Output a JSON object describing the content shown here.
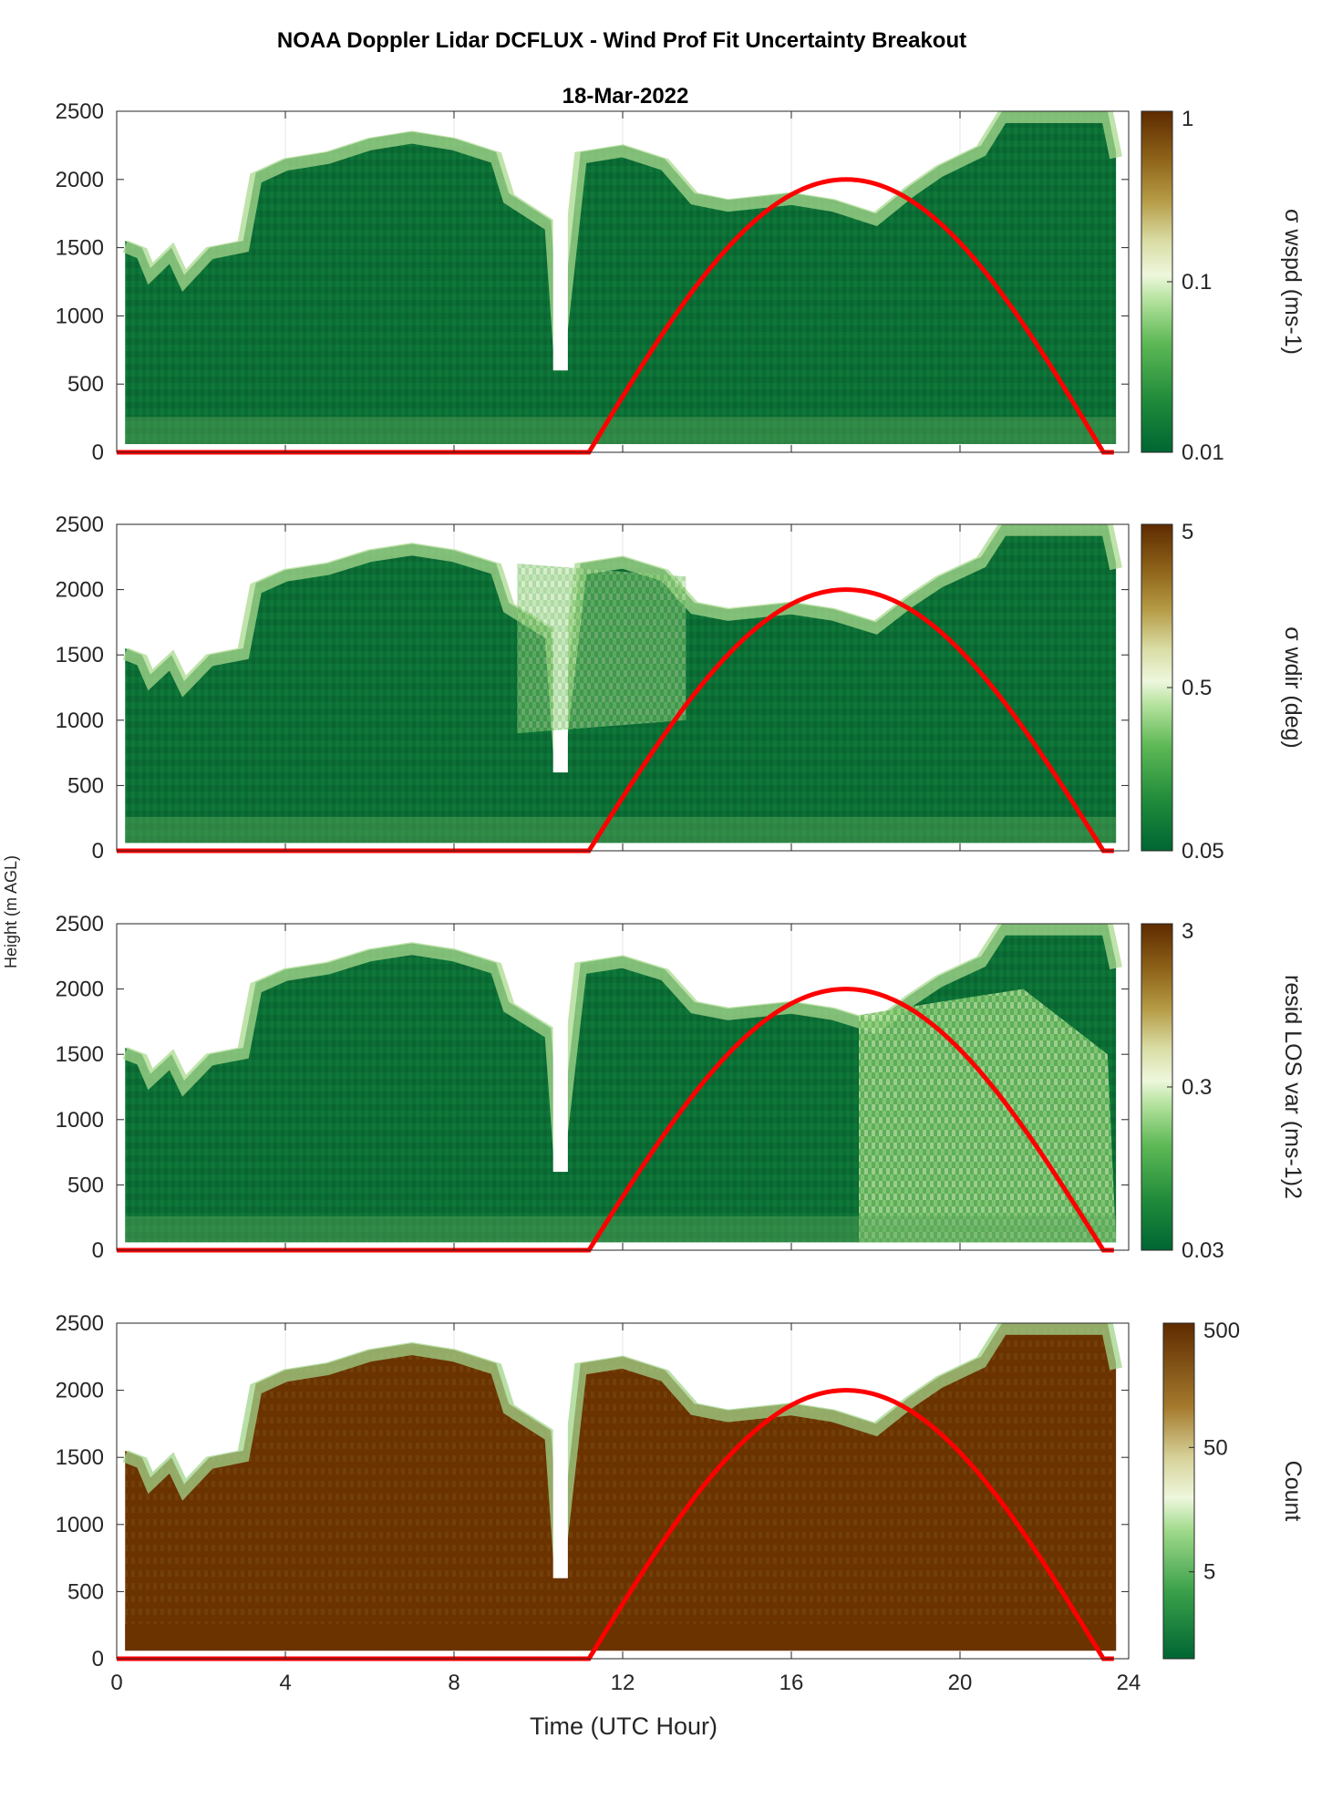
{
  "figure": {
    "title": "NOAA Doppler Lidar DCFLUX - Wind Prof Fit Uncertainty Breakout",
    "subtitle": "18-Mar-2022",
    "shared_ylabel": "Height (m AGL)",
    "shared_xlabel": "Time (UTC Hour)"
  },
  "colors": {
    "sun_curve": "#ff0000",
    "low": "#006633",
    "mid": "#eef7dd",
    "high": "#6b3300",
    "grid": "#e5e5e5"
  },
  "chart_data": [
    {
      "type": "heatmap",
      "title": "",
      "xlabel": "",
      "ylabel": "",
      "xlim": [
        0,
        24
      ],
      "ylim": [
        0,
        2500
      ],
      "xticks": [
        "0",
        "4",
        "8",
        "12",
        "16",
        "20",
        "24"
      ],
      "yticks": [
        "0",
        "500",
        "1000",
        "1500",
        "2000",
        "2500"
      ],
      "colorbar": {
        "label": "σ wspd (ms-1)",
        "scale": "log",
        "range": [
          0.01,
          1
        ],
        "ticks": [
          "0.01",
          "0.1",
          "1"
        ]
      },
      "data_top_m": [
        [
          0.2,
          1550
        ],
        [
          0.6,
          1500
        ],
        [
          0.8,
          1350
        ],
        [
          1.3,
          1500
        ],
        [
          1.6,
          1300
        ],
        [
          2.2,
          1500
        ],
        [
          3.0,
          1550
        ],
        [
          3.3,
          2050
        ],
        [
          4.0,
          2150
        ],
        [
          5.0,
          2200
        ],
        [
          6.0,
          2300
        ],
        [
          7.0,
          2350
        ],
        [
          8.0,
          2300
        ],
        [
          9.0,
          2200
        ],
        [
          9.3,
          1900
        ],
        [
          10.3,
          1700
        ],
        [
          10.5,
          800
        ],
        [
          11.0,
          2200
        ],
        [
          12.0,
          2250
        ],
        [
          13.0,
          2150
        ],
        [
          13.7,
          1900
        ],
        [
          14.5,
          1850
        ],
        [
          16.0,
          1900
        ],
        [
          17.0,
          1850
        ],
        [
          18.0,
          1750
        ],
        [
          18.8,
          1950
        ],
        [
          19.5,
          2100
        ],
        [
          20.5,
          2250
        ],
        [
          21.0,
          2500
        ],
        [
          23.5,
          2500
        ],
        [
          23.7,
          2200
        ]
      ],
      "notes": "σ wspd mostly ~0.01–0.03 (dark green) with lighter values near cloud top",
      "sun_elevation_curve": {
        "peak_hour": 17.25,
        "peak_height_m": 2000,
        "rise_hour": 11.2,
        "set_hour": 23.4
      }
    },
    {
      "type": "heatmap",
      "title": "",
      "xlabel": "",
      "ylabel": "",
      "xlim": [
        0,
        24
      ],
      "ylim": [
        0,
        2500
      ],
      "xticks": [
        "0",
        "4",
        "8",
        "12",
        "16",
        "20",
        "24"
      ],
      "yticks": [
        "0",
        "500",
        "1000",
        "1500",
        "2000",
        "2500"
      ],
      "colorbar": {
        "label": "σ wdir (deg)",
        "scale": "log",
        "range": [
          0.05,
          5
        ],
        "ticks": [
          "0.05",
          "0.5",
          "5"
        ]
      },
      "notes": "Higher σ wdir (light/brown) around 9–13 h and near upper boundary",
      "sun_elevation_curve": {
        "peak_hour": 17.25,
        "peak_height_m": 2000,
        "rise_hour": 11.2,
        "set_hour": 23.4
      }
    },
    {
      "type": "heatmap",
      "title": "",
      "xlabel": "",
      "ylabel": "",
      "xlim": [
        0,
        24
      ],
      "ylim": [
        0,
        2500
      ],
      "xticks": [
        "0",
        "4",
        "8",
        "12",
        "16",
        "20",
        "24"
      ],
      "yticks": [
        "0",
        "500",
        "1000",
        "1500",
        "2000",
        "2500"
      ],
      "colorbar": {
        "label": "resid LOS var (ms-1)2",
        "scale": "log",
        "range": [
          0.03,
          3
        ],
        "ticks": [
          "0.03",
          "0.3",
          "3"
        ]
      },
      "notes": "Lighter/olive values after ~17.5 h through 22 h",
      "sun_elevation_curve": {
        "peak_hour": 17.25,
        "peak_height_m": 2000,
        "rise_hour": 11.2,
        "set_hour": 23.4
      }
    },
    {
      "type": "heatmap",
      "title": "",
      "xlabel": "Time (UTC Hour)",
      "ylabel": "",
      "xlim": [
        0,
        24
      ],
      "ylim": [
        0,
        2500
      ],
      "xticks": [
        "0",
        "4",
        "8",
        "12",
        "16",
        "20",
        "24"
      ],
      "yticks": [
        "0",
        "500",
        "1000",
        "1500",
        "2000",
        "2500"
      ],
      "colorbar": {
        "label": "Count",
        "scale": "log",
        "range": [
          1,
          500
        ],
        "ticks": [
          "5",
          "50",
          "500"
        ]
      },
      "notes": "Count ~500 (brown) across most of the profile; low counts (green) near cloud top",
      "sun_elevation_curve": {
        "peak_hour": 17.25,
        "peak_height_m": 2000,
        "rise_hour": 11.2,
        "set_hour": 23.4
      }
    }
  ]
}
